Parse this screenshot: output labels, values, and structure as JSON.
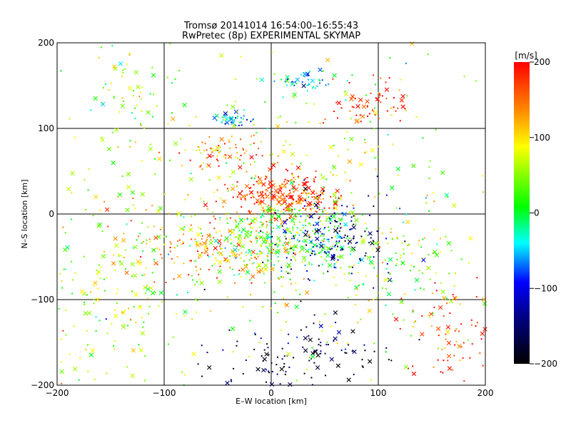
{
  "chart_data": {
    "type": "scatter",
    "title": "Tromsø 20141014 16:54:00–16:55:43",
    "subtitle": "RwPretec (8p) EXPERIMENTAL SKYMAP",
    "xlabel": "E–W location [km]",
    "ylabel": "N–S location [km]",
    "xlim": [
      -200,
      200
    ],
    "ylim": [
      -200,
      200
    ],
    "x_ticks": [
      "−200",
      "−100",
      "0",
      "100",
      "200"
    ],
    "y_ticks": [
      "−200",
      "−100",
      "0",
      "100",
      "200"
    ],
    "grid": true,
    "marker_types": [
      "dot",
      "x"
    ],
    "colorbar": {
      "label": "[m/s]",
      "range": [
        -200,
        200
      ],
      "ticks": [
        "200",
        "100",
        "0",
        "−100",
        "−200"
      ],
      "colors": [
        "#000000",
        "#000080",
        "#0000ff",
        "#00ffff",
        "#00ff00",
        "#ffff00",
        "#ff8000",
        "#ff0000"
      ]
    },
    "clusters": [
      {
        "x": 10,
        "y": 20,
        "sx": 25,
        "sy": 15,
        "v": 175,
        "n": 260
      },
      {
        "x": 15,
        "y": -30,
        "sx": 40,
        "sy": 20,
        "v": 15,
        "n": 340
      },
      {
        "x": -50,
        "y": -40,
        "sx": 40,
        "sy": 20,
        "v": 130,
        "n": 170
      },
      {
        "x": 60,
        "y": -30,
        "sx": 30,
        "sy": 25,
        "v": -140,
        "n": 150
      },
      {
        "x": 30,
        "y": -170,
        "sx": 40,
        "sy": 25,
        "v": -185,
        "n": 130
      },
      {
        "x": 30,
        "y": 155,
        "sx": 15,
        "sy": 6,
        "v": -60,
        "n": 45
      },
      {
        "x": -35,
        "y": 110,
        "sx": 10,
        "sy": 5,
        "v": -65,
        "n": 35
      },
      {
        "x": -40,
        "y": 70,
        "sx": 20,
        "sy": 10,
        "v": 140,
        "n": 70
      },
      {
        "x": 90,
        "y": 130,
        "sx": 20,
        "sy": 15,
        "v": 190,
        "n": 60
      },
      {
        "x": -140,
        "y": 140,
        "sx": 20,
        "sy": 30,
        "v": 50,
        "n": 45
      },
      {
        "x": 170,
        "y": -140,
        "sx": 25,
        "sy": 35,
        "v": 185,
        "n": 80
      },
      {
        "x": -150,
        "y": -100,
        "sx": 40,
        "sy": 50,
        "v": 60,
        "n": 140
      },
      {
        "x": 120,
        "y": -60,
        "sx": 30,
        "sy": 30,
        "v": 40,
        "n": 80
      },
      {
        "x": 0,
        "y": 0,
        "sx": 120,
        "sy": 110,
        "v": 60,
        "n": 550
      }
    ]
  }
}
